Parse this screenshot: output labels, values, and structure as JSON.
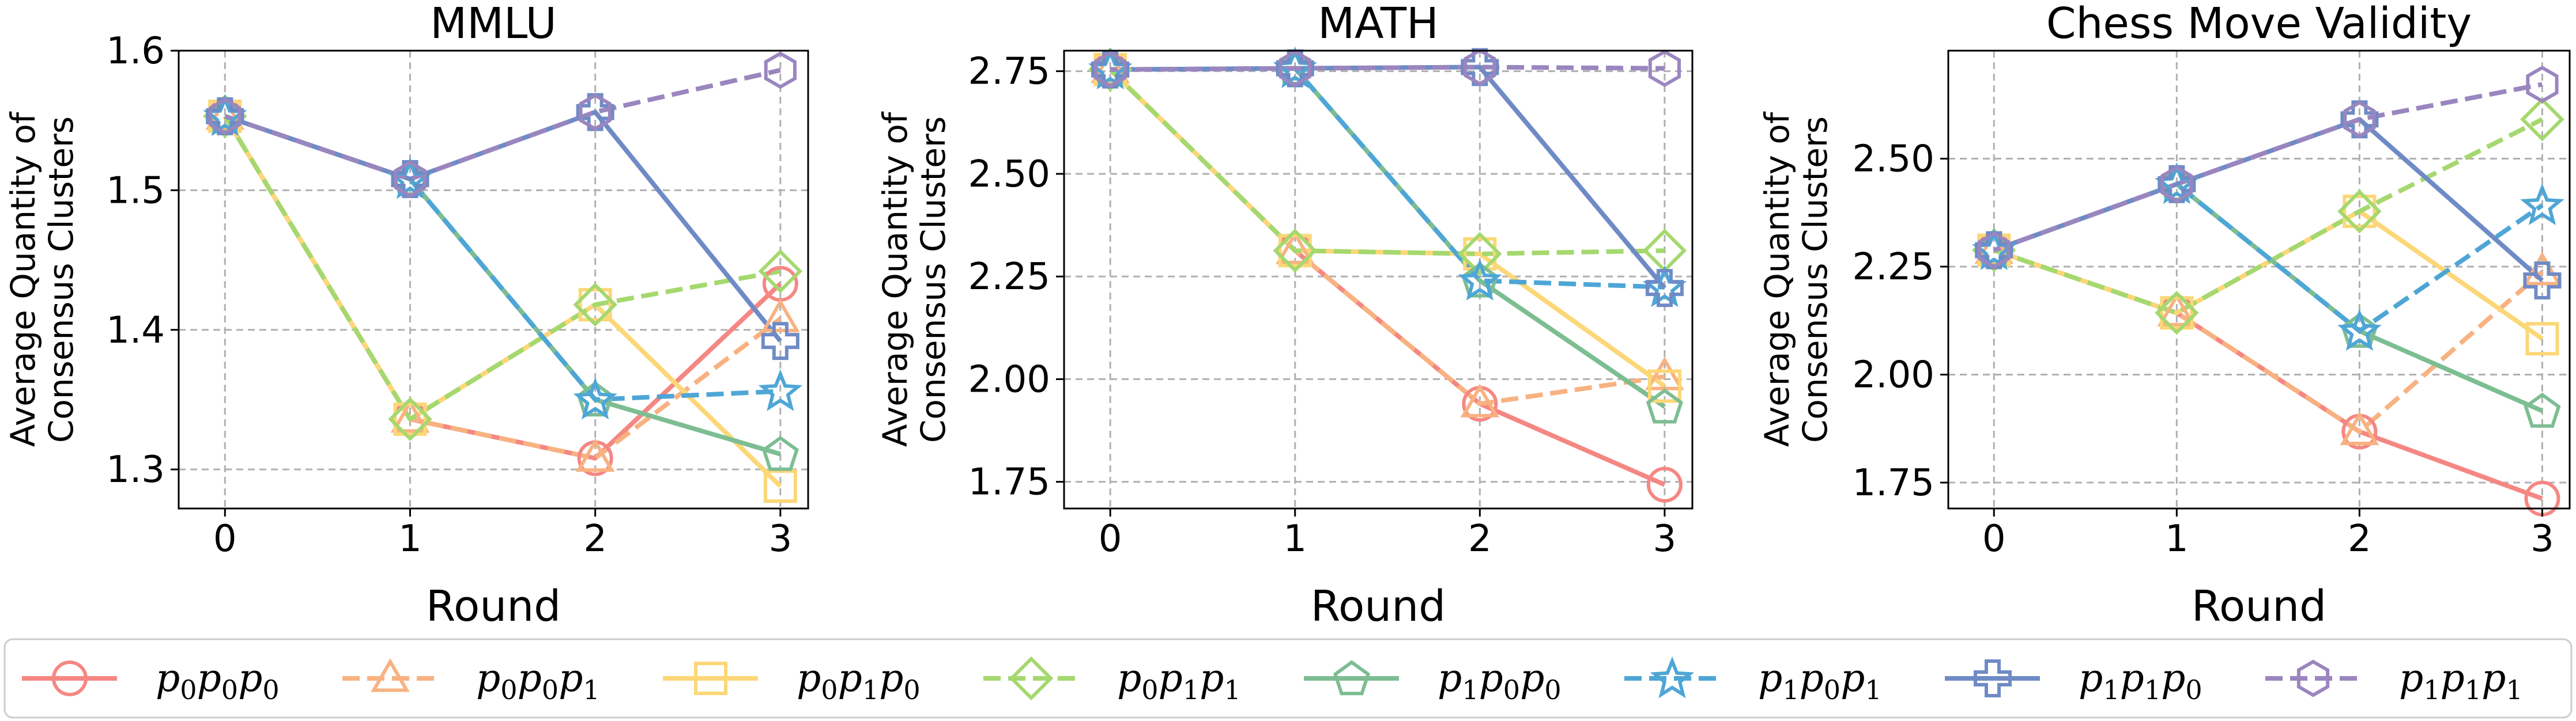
{
  "x_label": "Round",
  "y_label_lines": [
    "Average Quantity of",
    "Consensus Clusters"
  ],
  "legend": [
    {
      "key": "p0p0p0",
      "parts": [
        "p",
        "0",
        "p",
        "0",
        "p",
        "0"
      ],
      "color": "#f58783",
      "marker": "circle",
      "dashed": false
    },
    {
      "key": "p0p0p1",
      "parts": [
        "p",
        "0",
        "p",
        "0",
        "p",
        "1"
      ],
      "color": "#f8b281",
      "marker": "triangle",
      "dashed": true
    },
    {
      "key": "p0p1p0",
      "parts": [
        "p",
        "0",
        "p",
        "1",
        "p",
        "0"
      ],
      "color": "#fcd777",
      "marker": "square",
      "dashed": false
    },
    {
      "key": "p0p1p1",
      "parts": [
        "p",
        "0",
        "p",
        "1",
        "p",
        "1"
      ],
      "color": "#a5d86e",
      "marker": "diamond",
      "dashed": true
    },
    {
      "key": "p1p0p0",
      "parts": [
        "p",
        "1",
        "p",
        "0",
        "p",
        "0"
      ],
      "color": "#7dbd92",
      "marker": "pentagon",
      "dashed": false
    },
    {
      "key": "p1p0p1",
      "parts": [
        "p",
        "1",
        "p",
        "0",
        "p",
        "1"
      ],
      "color": "#4ea6d6",
      "marker": "star",
      "dashed": true
    },
    {
      "key": "p1p1p0",
      "parts": [
        "p",
        "1",
        "p",
        "1",
        "p",
        "0"
      ],
      "color": "#6f8bc6",
      "marker": "plus",
      "dashed": false
    },
    {
      "key": "p1p1p1",
      "parts": [
        "p",
        "1",
        "p",
        "1",
        "p",
        "1"
      ],
      "color": "#9a86bf",
      "marker": "hexagon",
      "dashed": true
    }
  ],
  "chart_data": [
    {
      "type": "line",
      "title": "MMLU",
      "xlabel": "Round",
      "ylabel": "Average Quantity of Consensus Clusters",
      "x": [
        0,
        1,
        2,
        3
      ],
      "xlim": [
        -0.25,
        3.15
      ],
      "ylim": [
        1.272,
        1.6
      ],
      "yticks": [
        1.3,
        1.4,
        1.5,
        1.6
      ],
      "ytick_labels": [
        "1.3",
        "1.4",
        "1.5",
        "1.6"
      ],
      "grid": true,
      "series": [
        {
          "key": "p0p0p0",
          "values": [
            1.553,
            1.336,
            1.308,
            1.433
          ]
        },
        {
          "key": "p0p0p1",
          "values": [
            1.553,
            1.336,
            1.308,
            1.408
          ]
        },
        {
          "key": "p0p1p0",
          "values": [
            1.553,
            1.336,
            1.418,
            1.288
          ]
        },
        {
          "key": "p0p1p1",
          "values": [
            1.553,
            1.336,
            1.418,
            1.442
          ]
        },
        {
          "key": "p1p0p0",
          "values": [
            1.553,
            1.508,
            1.35,
            1.311
          ]
        },
        {
          "key": "p1p0p1",
          "values": [
            1.553,
            1.508,
            1.35,
            1.356
          ]
        },
        {
          "key": "p1p1p0",
          "values": [
            1.553,
            1.508,
            1.556,
            1.392
          ]
        },
        {
          "key": "p1p1p1",
          "values": [
            1.553,
            1.508,
            1.556,
            1.586
          ]
        }
      ]
    },
    {
      "type": "line",
      "title": "MATH",
      "xlabel": "Round",
      "ylabel": "",
      "x": [
        0,
        1,
        2,
        3
      ],
      "xlim": [
        -0.25,
        3.15
      ],
      "ylim": [
        1.685,
        2.8
      ],
      "yticks": [
        1.75,
        2.0,
        2.25,
        2.5,
        2.75
      ],
      "ytick_labels": [
        "1.75",
        "2.00",
        "2.25",
        "2.50",
        "2.75"
      ],
      "grid": true,
      "series": [
        {
          "key": "p0p0p0",
          "values": [
            2.754,
            2.313,
            1.94,
            1.743
          ]
        },
        {
          "key": "p0p0p1",
          "values": [
            2.754,
            2.313,
            1.94,
            2.006
          ]
        },
        {
          "key": "p0p1p0",
          "values": [
            2.754,
            2.313,
            2.305,
            1.983
          ]
        },
        {
          "key": "p0p1p1",
          "values": [
            2.754,
            2.313,
            2.305,
            2.313
          ]
        },
        {
          "key": "p1p0p0",
          "values": [
            2.754,
            2.757,
            2.24,
            1.933
          ]
        },
        {
          "key": "p1p0p1",
          "values": [
            2.754,
            2.757,
            2.24,
            2.224
          ]
        },
        {
          "key": "p1p1p0",
          "values": [
            2.754,
            2.757,
            2.76,
            2.222
          ]
        },
        {
          "key": "p1p1p1",
          "values": [
            2.754,
            2.757,
            2.76,
            2.757
          ]
        }
      ]
    },
    {
      "type": "line",
      "title": "Chess Move Validity",
      "xlabel": "Round",
      "ylabel": "Average Quantity of Consensus Clusters",
      "x": [
        0,
        1,
        2,
        3
      ],
      "xlim": [
        -0.25,
        3.15
      ],
      "ylim": [
        1.69,
        2.75
      ],
      "yticks": [
        1.75,
        2.0,
        2.25,
        2.5
      ],
      "ytick_labels": [
        "1.75",
        "2.00",
        "2.25",
        "2.50"
      ],
      "grid": true,
      "series": [
        {
          "key": "p0p0p0",
          "values": [
            2.288,
            2.143,
            1.868,
            1.713
          ]
        },
        {
          "key": "p0p0p1",
          "values": [
            2.288,
            2.143,
            1.868,
            2.238
          ]
        },
        {
          "key": "p0p1p0",
          "values": [
            2.288,
            2.143,
            2.378,
            2.083
          ]
        },
        {
          "key": "p0p1p1",
          "values": [
            2.288,
            2.143,
            2.378,
            2.591
          ]
        },
        {
          "key": "p1p0p0",
          "values": [
            2.288,
            2.441,
            2.101,
            1.916
          ]
        },
        {
          "key": "p1p0p1",
          "values": [
            2.288,
            2.441,
            2.101,
            2.392
          ]
        },
        {
          "key": "p1p1p0",
          "values": [
            2.288,
            2.441,
            2.591,
            2.218
          ]
        },
        {
          "key": "p1p1p1",
          "values": [
            2.288,
            2.441,
            2.591,
            2.672
          ]
        }
      ]
    }
  ]
}
